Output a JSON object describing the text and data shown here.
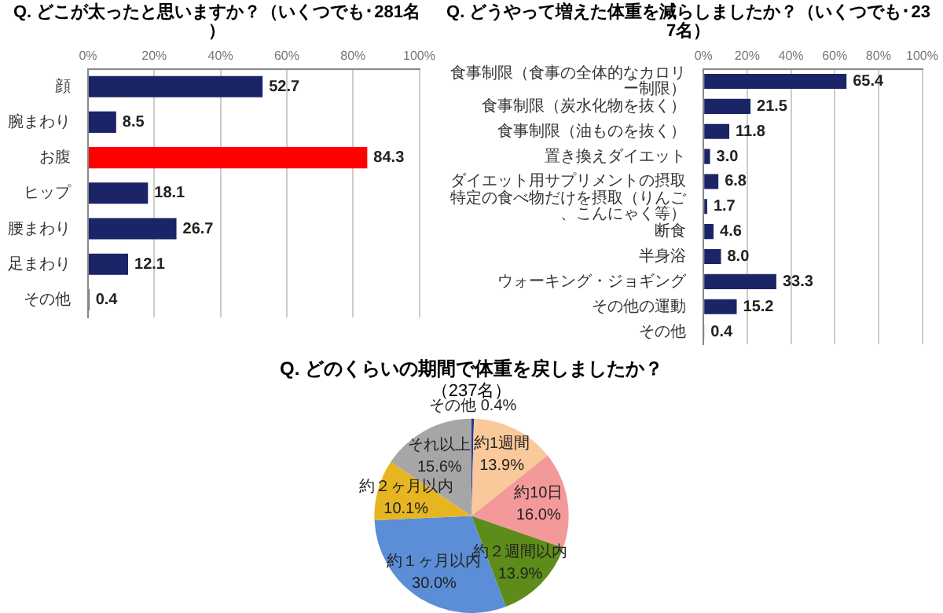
{
  "chart_data": [
    {
      "type": "bar",
      "orientation": "horizontal",
      "title": "Q. どこが太ったと思いますか？（いくつでも･281名）",
      "categories": [
        "顔",
        "腕まわり",
        "お腹",
        "ヒップ",
        "腰まわり",
        "足まわり",
        "その他"
      ],
      "values": [
        52.7,
        8.5,
        84.3,
        18.1,
        26.7,
        12.1,
        0.4
      ],
      "value_labels": [
        "52.7",
        "8.5",
        "84.3",
        "18.1",
        "26.7",
        "12.1",
        "0.4"
      ],
      "colors": [
        "#1a2466",
        "#1a2466",
        "#ff0000",
        "#1a2466",
        "#1a2466",
        "#1a2466",
        "#1a2466"
      ],
      "xlim": [
        0,
        100
      ],
      "xticks": [
        {
          "value": 0,
          "label": "0%"
        },
        {
          "value": 20,
          "label": "20%"
        },
        {
          "value": 40,
          "label": "40%"
        },
        {
          "value": 60,
          "label": "60%"
        },
        {
          "value": 80,
          "label": "80%"
        },
        {
          "value": 100,
          "label": "100%"
        }
      ],
      "grid": "x"
    },
    {
      "type": "bar",
      "orientation": "horizontal",
      "title": "Q. どうやって増えた体重を減らしましたか？（いくつでも･237名）",
      "categories": [
        "食事制限（食事の全体的なカロリー制限）",
        "食事制限（炭水化物を抜く）",
        "食事制限（油ものを抜く）",
        "置き換えダイエット",
        "ダイエット用サプリメントの摂取",
        "特定の食べ物だけを摂取（りんご、こんにゃく等）",
        "断食",
        "半身浴",
        "ウォーキング・ジョギング",
        "その他の運動",
        "その他"
      ],
      "values": [
        65.4,
        21.5,
        11.8,
        3.0,
        6.8,
        1.7,
        4.6,
        8.0,
        33.3,
        15.2,
        0.4
      ],
      "value_labels": [
        "65.4",
        "21.5",
        "11.8",
        "3.0",
        "6.8",
        "1.7",
        "4.6",
        "8.0",
        "33.3",
        "15.2",
        "0.4"
      ],
      "colors": [
        "#1a2466",
        "#1a2466",
        "#1a2466",
        "#1a2466",
        "#1a2466",
        "#1a2466",
        "#1a2466",
        "#1a2466",
        "#1a2466",
        "#1a2466",
        "#1a2466"
      ],
      "xlim": [
        0,
        100
      ],
      "xticks": [
        {
          "value": 0,
          "label": "0%"
        },
        {
          "value": 20,
          "label": "20%"
        },
        {
          "value": 40,
          "label": "40%"
        },
        {
          "value": 60,
          "label": "60%"
        },
        {
          "value": 80,
          "label": "80%"
        },
        {
          "value": 100,
          "label": "100%"
        }
      ],
      "grid": "x"
    },
    {
      "type": "pie",
      "title": "Q. どのくらいの期間で体重を戻しましたか？",
      "subtitle": "（237名）",
      "categories": [
        "その他",
        "約1週間",
        "約10日",
        "約２週間以内",
        "約１ヶ月以内",
        "約２ヶ月以内",
        "それ以上"
      ],
      "values": [
        0.4,
        13.9,
        16.0,
        13.9,
        30.0,
        10.1,
        15.6
      ],
      "value_labels": [
        "0.4%",
        "13.9%",
        "16.0%",
        "13.9%",
        "30.0%",
        "10.1%",
        "15.6%"
      ],
      "colors": [
        "#1f3a93",
        "#f9c89b",
        "#f4999a",
        "#5e8c1a",
        "#5b8ed6",
        "#e6b521",
        "#a6a6a6"
      ]
    }
  ]
}
